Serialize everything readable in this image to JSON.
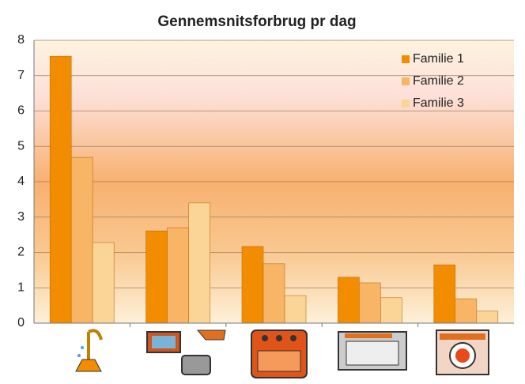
{
  "chart_data": {
    "type": "bar",
    "title": "Gennemsnitsforbrug pr dag",
    "categories": [
      null,
      null,
      null,
      null,
      null
    ],
    "series": [
      {
        "name": "Familie 1",
        "color": "#f28c00",
        "values": [
          7.55,
          2.61,
          2.17,
          1.3,
          1.65
        ]
      },
      {
        "name": "Familie 2",
        "color": "#f7b565",
        "values": [
          4.69,
          2.7,
          1.68,
          1.14,
          0.69
        ]
      },
      {
        "name": "Familie 3",
        "color": "#fad597",
        "values": [
          2.28,
          3.4,
          0.78,
          0.72,
          0.34
        ]
      }
    ],
    "ylim": [
      0,
      8
    ],
    "yticks": [
      0,
      1,
      2,
      3,
      4,
      5,
      6,
      7,
      8
    ],
    "grid": true,
    "legend": "upper right"
  }
}
